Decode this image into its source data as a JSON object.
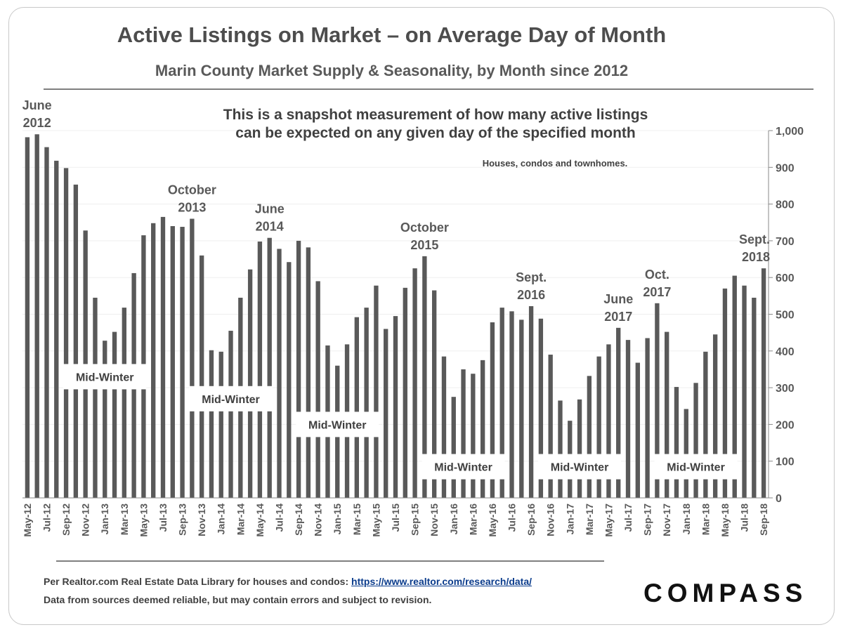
{
  "title": "Active Listings on Market – on Average Day of Month",
  "subtitle": "Marin County Market Supply & Seasonality, by Month since 2012",
  "note_lines": [
    "This is a snapshot measurement of how many active listings",
    "can be expected on any given day of the specified month"
  ],
  "scope_note": "Houses, condos and townhomes.",
  "footer": {
    "source_text": "Per Realtor.com Real Estate  Data Library for houses and condos:",
    "source_link": "https://www.realtor.com/research/data/",
    "disclaimer": "Data from sources  deemed reliable, but may contain errors and subject to revision."
  },
  "logo": "COMPASS",
  "colors": {
    "bar": "#595959",
    "text": "#595959",
    "link": "#0b3c8c"
  },
  "chart_data": {
    "type": "bar",
    "categories": [
      "May-12",
      "Jun-12",
      "Jul-12",
      "Aug-12",
      "Sep-12",
      "Oct-12",
      "Nov-12",
      "Dec-12",
      "Jan-13",
      "Feb-13",
      "Mar-13",
      "Apr-13",
      "May-13",
      "Jun-13",
      "Jul-13",
      "Aug-13",
      "Sep-13",
      "Oct-13",
      "Nov-13",
      "Dec-13",
      "Jan-14",
      "Feb-14",
      "Mar-14",
      "Apr-14",
      "May-14",
      "Jun-14",
      "Jul-14",
      "Aug-14",
      "Sep-14",
      "Oct-14",
      "Nov-14",
      "Dec-14",
      "Jan-15",
      "Feb-15",
      "Mar-15",
      "Apr-15",
      "May-15",
      "Jun-15",
      "Jul-15",
      "Aug-15",
      "Sep-15",
      "Oct-15",
      "Nov-15",
      "Dec-15",
      "Jan-16",
      "Feb-16",
      "Mar-16",
      "Apr-16",
      "May-16",
      "Jun-16",
      "Jul-16",
      "Aug-16",
      "Sep-16",
      "Oct-16",
      "Nov-16",
      "Dec-16",
      "Jan-17",
      "Feb-17",
      "Mar-17",
      "Apr-17",
      "May-17",
      "Jun-17",
      "Jul-17",
      "Aug-17",
      "Sep-17",
      "Oct-17",
      "Nov-17",
      "Dec-17",
      "Jan-18",
      "Feb-18",
      "Mar-18",
      "Apr-18",
      "May-18",
      "Jun-18",
      "Jul-18",
      "Aug-18",
      "Sep-18"
    ],
    "values": [
      982,
      990,
      955,
      918,
      898,
      853,
      728,
      545,
      428,
      452,
      518,
      612,
      715,
      748,
      765,
      740,
      738,
      760,
      660,
      402,
      398,
      455,
      545,
      622,
      698,
      708,
      678,
      642,
      700,
      682,
      590,
      415,
      360,
      418,
      492,
      518,
      578,
      460,
      495,
      572,
      625,
      658,
      565,
      385,
      275,
      350,
      338,
      375,
      478,
      518,
      508,
      485,
      522,
      488,
      390,
      265,
      210,
      268,
      332,
      385,
      418,
      463,
      430,
      368,
      435,
      530,
      452,
      302,
      242,
      313,
      398,
      445,
      570,
      605,
      578,
      545,
      625
    ],
    "y_axis_ticks": [
      "0",
      "100",
      "200",
      "300",
      "400",
      "500",
      "600",
      "700",
      "800",
      "900",
      "1,000"
    ],
    "ylim": [
      0,
      1000
    ],
    "x_tick_labels": [
      "May-12",
      "Jul-12",
      "Sep-12",
      "Nov-12",
      "Jan-13",
      "Mar-13",
      "May-13",
      "Jul-13",
      "Sep-13",
      "Nov-13",
      "Jan-14",
      "Mar-14",
      "May-14",
      "Jul-14",
      "Sep-14",
      "Nov-14",
      "Jan-15",
      "Mar-15",
      "May-15",
      "Jul-15",
      "Sep-15",
      "Nov-15",
      "Jan-16",
      "Mar-16",
      "May-16",
      "Jul-16",
      "Sep-16",
      "Nov-16",
      "Jan-17",
      "Mar-17",
      "May-17",
      "Jul-17",
      "Sep-17",
      "Nov-17",
      "Jan-18",
      "Mar-18",
      "May-18",
      "Jul-18",
      "Sep-18"
    ],
    "y_axis_position": "right",
    "grid": true,
    "annotations": [
      {
        "lines": [
          "June",
          "2012"
        ],
        "category": "Jun-12"
      },
      {
        "lines": [
          "October",
          "2013"
        ],
        "category": "Oct-13"
      },
      {
        "lines": [
          "June",
          "2014"
        ],
        "category": "Jun-14"
      },
      {
        "lines": [
          "October",
          "2015"
        ],
        "category": "Oct-15"
      },
      {
        "lines": [
          "Sept.",
          "2016"
        ],
        "category": "Sep-16"
      },
      {
        "lines": [
          "June",
          "2017"
        ],
        "category": "Jun-17"
      },
      {
        "lines": [
          "Oct.",
          "2017"
        ],
        "category": "Oct-17"
      },
      {
        "lines": [
          "Sept.",
          "2018"
        ],
        "category": "Sep-18"
      }
    ],
    "season_labels": [
      {
        "text": "Mid-Winter",
        "category": "Jan-13",
        "level": 330
      },
      {
        "text": "Mid-Winter",
        "category": "Feb-14",
        "level": 270
      },
      {
        "text": "Mid-Winter",
        "category": "Jan-15",
        "level": 200
      },
      {
        "text": "Mid-Winter",
        "category": "Feb-16",
        "level": 85
      },
      {
        "text": "Mid-Winter",
        "category": "Feb-17",
        "level": 85
      },
      {
        "text": "Mid-Winter",
        "category": "Feb-18",
        "level": 85
      }
    ]
  }
}
